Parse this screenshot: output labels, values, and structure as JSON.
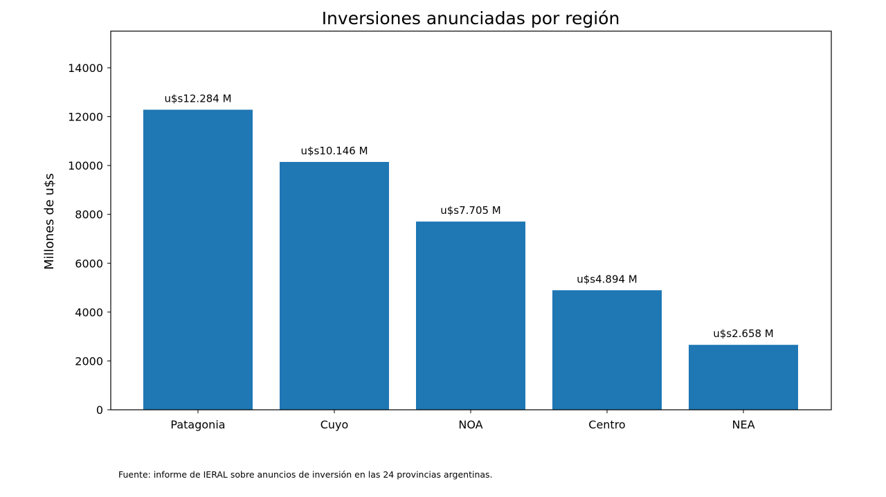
{
  "chart_data": {
    "type": "bar",
    "title": "Inversiones anunciadas por región",
    "xlabel": "",
    "ylabel": "Millones de u$s",
    "categories": [
      "Patagonia",
      "Cuyo",
      "NOA",
      "Centro",
      "NEA"
    ],
    "values": [
      12284,
      10146,
      7705,
      4894,
      2658
    ],
    "data_labels": [
      "u$s12.284 M",
      "u$s10.146 M",
      "u$s7.705 M",
      "u$s4.894 M",
      "u$s2.658 M"
    ],
    "ylim": [
      0,
      15500
    ],
    "yticks": [
      0,
      2000,
      4000,
      6000,
      8000,
      10000,
      12000,
      14000
    ],
    "ytick_labels": [
      "0",
      "2000",
      "4000",
      "6000",
      "8000",
      "10000",
      "12000",
      "14000"
    ],
    "grid": false,
    "bar_color": "#1f77b4"
  },
  "footer": {
    "source": "Fuente: informe de IERAL sobre anuncios de inversión en las 24 provincias argentinas."
  }
}
